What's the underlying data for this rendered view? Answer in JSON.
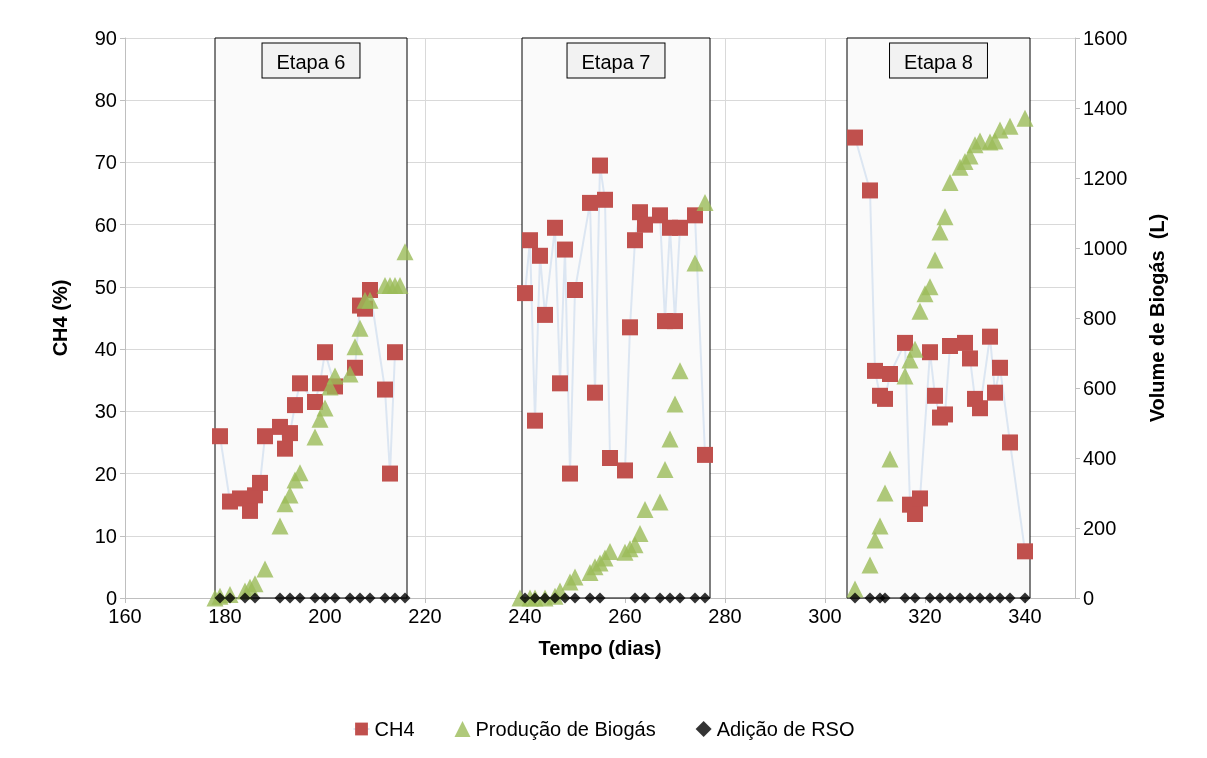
{
  "chart_data": {
    "type": "scatter",
    "xlabel": "Tempo (dias)",
    "ylabel": "CH4 (%)",
    "y2label": "Volume de Biogás  (L)",
    "xlim": [
      160,
      350
    ],
    "xticks": [
      160,
      180,
      200,
      220,
      240,
      260,
      280,
      300,
      320,
      340
    ],
    "ylim": [
      0,
      90
    ],
    "yticks": [
      0,
      10,
      20,
      30,
      40,
      50,
      60,
      70,
      80,
      90
    ],
    "y2lim": [
      0,
      1600
    ],
    "y2ticks": [
      0,
      200,
      400,
      600,
      800,
      1000,
      1200,
      1400,
      1600
    ],
    "grid": true,
    "legend": "bottom",
    "bands": [
      {
        "axis": "x",
        "from": 178,
        "to": 216.4,
        "label": "Etapa 6",
        "color": "#fafafa"
      },
      {
        "axis": "x",
        "from": 239.4,
        "to": 277,
        "label": "Etapa 7",
        "color": "#fafafa"
      },
      {
        "axis": "x",
        "from": 304.4,
        "to": 341,
        "label": "Etapa 8",
        "color": "#fafafa"
      }
    ],
    "series": [
      {
        "name": "CH4",
        "type": "line",
        "marker": "square",
        "color": "#c0504d",
        "x": [
          179,
          181,
          183,
          185,
          186,
          187,
          188,
          191,
          192,
          193,
          194,
          195,
          198,
          199,
          200,
          202,
          206,
          207,
          208,
          209,
          212,
          213,
          214,
          225,
          240,
          241,
          242,
          243,
          244,
          246,
          247,
          248,
          249,
          250,
          253,
          254,
          255,
          256,
          257,
          260,
          261,
          262,
          263,
          264,
          267,
          268,
          269,
          270,
          271,
          274,
          276,
          290,
          306,
          309,
          310,
          311,
          312,
          313,
          316,
          317,
          318,
          319,
          321,
          322,
          323,
          324,
          325,
          328,
          329,
          330,
          331,
          333,
          334,
          335,
          337,
          340
        ],
        "values": [
          26,
          15.5,
          16,
          14,
          16.5,
          18.5,
          26,
          27.5,
          24,
          26.5,
          31,
          34.5,
          31.5,
          34.5,
          39.5,
          34,
          37,
          47,
          46.5,
          49.5,
          33.5,
          20,
          39.5,
          null,
          49,
          57.5,
          28.5,
          55,
          45.5,
          59.5,
          34.5,
          56,
          20,
          49.5,
          63.5,
          33,
          69.5,
          64,
          22.5,
          20.5,
          43.5,
          57.5,
          62,
          60,
          61.5,
          44.5,
          59.5,
          44.5,
          59.5,
          61.5,
          23,
          null,
          74,
          65.5,
          36.5,
          32.5,
          32,
          36,
          41,
          15,
          13.5,
          16,
          39.5,
          32.5,
          29,
          29.5,
          40.5,
          41,
          38.5,
          32,
          30.5,
          42,
          33,
          37,
          25,
          7.5
        ]
      },
      {
        "name": "Produção de Biogás",
        "axis": "y2",
        "marker": "triangle",
        "color": "#9bbb59",
        "x": [
          178,
          179,
          181,
          184,
          185,
          186,
          188,
          191,
          192,
          193,
          194,
          195,
          198,
          199,
          200,
          201,
          202,
          205,
          206,
          207,
          208,
          209,
          212,
          213,
          214,
          215,
          216,
          239,
          241,
          242,
          244,
          246,
          247,
          249,
          250,
          253,
          254,
          255,
          256,
          257,
          260,
          261,
          262,
          263,
          264,
          267,
          268,
          269,
          270,
          271,
          274,
          276,
          306,
          309,
          310,
          311,
          312,
          313,
          316,
          317,
          318,
          319,
          320,
          321,
          322,
          323,
          324,
          325,
          327,
          328,
          329,
          330,
          331,
          333,
          334,
          335,
          337,
          340
        ],
        "values": [
          0,
          5,
          10,
          20,
          31,
          41,
          83,
          206,
          269,
          294,
          337,
          358,
          460,
          511,
          543,
          603,
          634,
          640,
          718,
          771,
          851,
          851,
          893,
          893,
          893,
          893,
          989,
          0,
          0,
          0,
          0,
          5,
          20,
          46,
          60,
          73,
          89,
          100,
          114,
          133,
          131,
          141,
          152,
          184,
          253,
          274,
          367,
          454,
          554,
          649,
          957,
          1130,
          26,
          94,
          166,
          206,
          300,
          397,
          634,
          680,
          711,
          819,
          869,
          889,
          966,
          1046,
          1089,
          1187,
          1231,
          1247,
          1263,
          1295,
          1306,
          1303,
          1306,
          1337,
          1348,
          1371
        ]
      },
      {
        "name": "Adição de RSO",
        "marker": "diamond",
        "color": "#000000",
        "x": [
          179,
          181,
          184,
          186,
          191,
          193,
          195,
          198,
          200,
          202,
          205,
          207,
          209,
          212,
          214,
          216,
          240,
          242,
          244,
          246,
          248,
          250,
          253,
          255,
          262,
          264,
          267,
          269,
          271,
          274,
          276,
          306,
          309,
          311,
          312,
          316,
          318,
          321,
          323,
          325,
          327,
          329,
          331,
          333,
          335,
          337,
          340
        ],
        "values": [
          0,
          0,
          0,
          0,
          0,
          0,
          0,
          0,
          0,
          0,
          0,
          0,
          0,
          0,
          0,
          0,
          0,
          0,
          0,
          0,
          0,
          0,
          0,
          0,
          0,
          0,
          0,
          0,
          0,
          0,
          0,
          0,
          0,
          0,
          0,
          0,
          0,
          0,
          0,
          0,
          0,
          0,
          0,
          0,
          0,
          0,
          0
        ]
      }
    ]
  }
}
